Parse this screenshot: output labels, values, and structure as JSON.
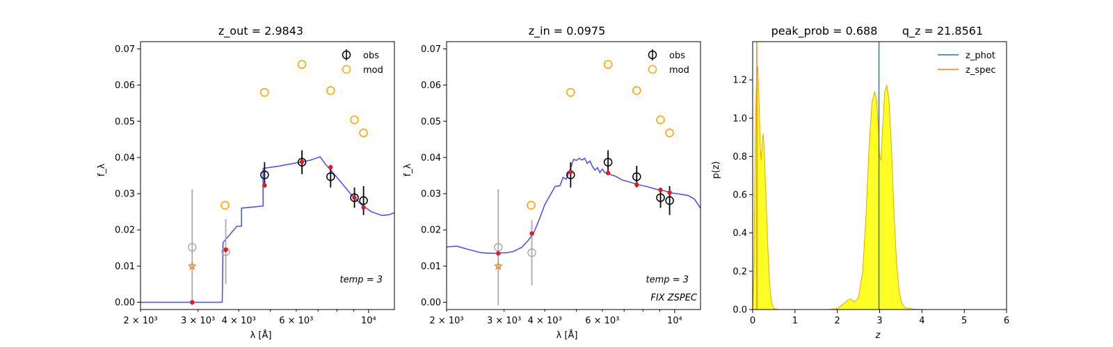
{
  "chart_data": [
    {
      "type": "scatter",
      "title": "z_out = 2.9843",
      "xlabel": "λ [Å]",
      "ylabel": "f_λ",
      "xscale": "log",
      "xlim": [
        2000,
        12000
      ],
      "ylim": [
        -0.002,
        0.072
      ],
      "xtick_labels": [
        {
          "value": 2000,
          "label": "2 × 10³"
        },
        {
          "value": 3000,
          "label": "3 × 10³"
        },
        {
          "value": 4000,
          "label": "4 × 10³"
        },
        {
          "value": 6000,
          "label": "6 × 10³"
        },
        {
          "value": 10000,
          "label": "10⁴"
        }
      ],
      "yticks": [
        0.0,
        0.01,
        0.02,
        0.03,
        0.04,
        0.05,
        0.06,
        0.07
      ],
      "ytick_labels": [
        "0.00",
        "0.01",
        "0.02",
        "0.03",
        "0.04",
        "0.05",
        "0.06",
        "0.07"
      ],
      "annotation": "temp = 3",
      "legend_position": "top-right",
      "legend": [
        {
          "label": "obs"
        },
        {
          "label": "mod"
        }
      ],
      "series": [
        {
          "name": "obs",
          "points": [
            {
              "x": 4800,
              "y": 0.0352,
              "err": 0.0035
            },
            {
              "x": 6250,
              "y": 0.0387,
              "err": 0.0033
            },
            {
              "x": 7650,
              "y": 0.0347,
              "err": 0.003
            },
            {
              "x": 9050,
              "y": 0.0289,
              "err": 0.0028
            },
            {
              "x": 9650,
              "y": 0.0281,
              "err": 0.004
            }
          ]
        },
        {
          "name": "obs_gray",
          "points": [
            {
              "x": 2880,
              "y": 0.0152,
              "err": 0.016
            },
            {
              "x": 3650,
              "y": 0.014,
              "err": 0.009
            }
          ]
        },
        {
          "name": "mod",
          "points": [
            {
              "x": 3630,
              "y": 0.0268
            },
            {
              "x": 4800,
              "y": 0.058
            },
            {
              "x": 6250,
              "y": 0.0657
            },
            {
              "x": 7650,
              "y": 0.0585
            },
            {
              "x": 9050,
              "y": 0.0504
            },
            {
              "x": 9650,
              "y": 0.0468
            }
          ]
        },
        {
          "name": "star",
          "points": [
            {
              "x": 2880,
              "y": 0.01
            }
          ]
        },
        {
          "name": "red",
          "points": [
            {
              "x": 2880,
              "y": 0.0
            },
            {
              "x": 3650,
              "y": 0.0145
            },
            {
              "x": 4800,
              "y": 0.0323
            },
            {
              "x": 6250,
              "y": 0.0388
            },
            {
              "x": 7650,
              "y": 0.0373
            },
            {
              "x": 9050,
              "y": 0.0289
            },
            {
              "x": 9650,
              "y": 0.0262
            }
          ]
        },
        {
          "name": "sed",
          "points": [
            [
              2000,
              0.0
            ],
            [
              3560,
              0.0
            ],
            [
              3580,
              0.0165
            ],
            [
              3950,
              0.021
            ],
            [
              4080,
              0.021
            ],
            [
              4080,
              0.026
            ],
            [
              4750,
              0.0266
            ],
            [
              4750,
              0.037
            ],
            [
              5300,
              0.0376
            ],
            [
              6000,
              0.0385
            ],
            [
              6600,
              0.0392
            ],
            [
              7100,
              0.0402
            ],
            [
              7400,
              0.038
            ],
            [
              8000,
              0.0345
            ],
            [
              8800,
              0.03
            ],
            [
              9500,
              0.027
            ],
            [
              10200,
              0.025
            ],
            [
              11000,
              0.024
            ],
            [
              11600,
              0.0242
            ],
            [
              12000,
              0.0248
            ]
          ]
        }
      ]
    },
    {
      "type": "scatter",
      "title": "z_in = 0.0975",
      "xlabel": "λ [Å]",
      "ylabel": "f_λ",
      "xscale": "log",
      "xlim": [
        2000,
        12000
      ],
      "ylim": [
        -0.002,
        0.072
      ],
      "xtick_labels": [
        {
          "value": 2000,
          "label": "2 × 10³"
        },
        {
          "value": 3000,
          "label": "3 × 10³"
        },
        {
          "value": 4000,
          "label": "4 × 10³"
        },
        {
          "value": 6000,
          "label": "6 × 10³"
        },
        {
          "value": 10000,
          "label": "10⁴"
        }
      ],
      "yticks": [
        0.0,
        0.01,
        0.02,
        0.03,
        0.04,
        0.05,
        0.06,
        0.07
      ],
      "ytick_labels": [
        "0.00",
        "0.01",
        "0.02",
        "0.03",
        "0.04",
        "0.05",
        "0.06",
        "0.07"
      ],
      "annotation": "temp = 3",
      "annotation2": "FIX ZSPEC",
      "legend_position": "top-right",
      "legend": [
        {
          "label": "obs"
        },
        {
          "label": "mod"
        }
      ],
      "series": [
        {
          "name": "obs",
          "points": [
            {
              "x": 4800,
              "y": 0.0352,
              "err": 0.0035
            },
            {
              "x": 6250,
              "y": 0.0387,
              "err": 0.0033
            },
            {
              "x": 7650,
              "y": 0.0347,
              "err": 0.003
            },
            {
              "x": 9050,
              "y": 0.0289,
              "err": 0.0028
            },
            {
              "x": 9650,
              "y": 0.0281,
              "err": 0.004
            }
          ]
        },
        {
          "name": "obs_gray",
          "points": [
            {
              "x": 2880,
              "y": 0.0152,
              "err": 0.016
            },
            {
              "x": 3650,
              "y": 0.0137,
              "err": 0.009
            }
          ]
        },
        {
          "name": "mod",
          "points": [
            {
              "x": 3630,
              "y": 0.0268
            },
            {
              "x": 4800,
              "y": 0.058
            },
            {
              "x": 6250,
              "y": 0.0657
            },
            {
              "x": 7650,
              "y": 0.0585
            },
            {
              "x": 9050,
              "y": 0.0504
            },
            {
              "x": 9650,
              "y": 0.0468
            }
          ]
        },
        {
          "name": "star",
          "points": [
            {
              "x": 2880,
              "y": 0.01
            }
          ]
        },
        {
          "name": "red",
          "points": [
            {
              "x": 2880,
              "y": 0.0135
            },
            {
              "x": 3650,
              "y": 0.019
            },
            {
              "x": 4800,
              "y": 0.036
            },
            {
              "x": 6250,
              "y": 0.0357
            },
            {
              "x": 7650,
              "y": 0.0325
            },
            {
              "x": 9050,
              "y": 0.031
            },
            {
              "x": 9650,
              "y": 0.0303
            }
          ]
        },
        {
          "name": "sed",
          "points": [
            [
              2000,
              0.0153
            ],
            [
              2150,
              0.0155
            ],
            [
              2350,
              0.0145
            ],
            [
              2550,
              0.0137
            ],
            [
              2750,
              0.0135
            ],
            [
              2900,
              0.0136
            ],
            [
              3050,
              0.0137
            ],
            [
              3200,
              0.014
            ],
            [
              3400,
              0.0152
            ],
            [
              3550,
              0.017
            ],
            [
              3700,
              0.0192
            ],
            [
              3850,
              0.023
            ],
            [
              4000,
              0.027
            ],
            [
              4150,
              0.0295
            ],
            [
              4300,
              0.032
            ],
            [
              4450,
              0.0322
            ],
            [
              4550,
              0.0345
            ],
            [
              4650,
              0.034
            ],
            [
              4800,
              0.037
            ],
            [
              4900,
              0.0395
            ],
            [
              5000,
              0.0392
            ],
            [
              5100,
              0.0398
            ],
            [
              5200,
              0.0393
            ],
            [
              5300,
              0.0398
            ],
            [
              5400,
              0.0384
            ],
            [
              5500,
              0.039
            ],
            [
              5600,
              0.0375
            ],
            [
              5700,
              0.0365
            ],
            [
              5800,
              0.0372
            ],
            [
              5900,
              0.0358
            ],
            [
              6000,
              0.0368
            ],
            [
              6100,
              0.0359
            ],
            [
              6250,
              0.0356
            ],
            [
              6400,
              0.0352
            ],
            [
              6600,
              0.0348
            ],
            [
              6900,
              0.0338
            ],
            [
              7300,
              0.0332
            ],
            [
              7700,
              0.0325
            ],
            [
              8200,
              0.032
            ],
            [
              8800,
              0.0312
            ],
            [
              9300,
              0.0308
            ],
            [
              9800,
              0.0302
            ],
            [
              10500,
              0.0298
            ],
            [
              11000,
              0.0295
            ],
            [
              11500,
              0.0285
            ],
            [
              12000,
              0.026
            ]
          ]
        }
      ]
    },
    {
      "type": "area",
      "title": "peak_prob = 0.688",
      "title2": "q_z = 21.8561",
      "xlabel": "z",
      "ylabel": "p(z)",
      "xlim": [
        0,
        6
      ],
      "ylim": [
        0,
        1.4
      ],
      "xticks": [
        0,
        1,
        2,
        3,
        4,
        5,
        6
      ],
      "xtick_labels": [
        "0",
        "1",
        "2",
        "3",
        "4",
        "5",
        "6"
      ],
      "yticks": [
        0.0,
        0.2,
        0.4,
        0.6,
        0.8,
        1.0,
        1.2
      ],
      "ytick_labels": [
        "0.0",
        "0.2",
        "0.4",
        "0.6",
        "0.8",
        "1.0",
        "1.2"
      ],
      "legend_position": "top-right",
      "legend": [
        {
          "label": "z_phot",
          "color": "#1f77b4"
        },
        {
          "label": "z_spec",
          "color": "#ff7f0e"
        }
      ],
      "z_phot": 2.9843,
      "z_spec": 0.0975,
      "pdf": [
        [
          0.0,
          0.0
        ],
        [
          0.03,
          0.2
        ],
        [
          0.06,
          0.9
        ],
        [
          0.09,
          1.2
        ],
        [
          0.12,
          1.27
        ],
        [
          0.15,
          1.1
        ],
        [
          0.18,
          0.85
        ],
        [
          0.2,
          0.78
        ],
        [
          0.23,
          0.88
        ],
        [
          0.25,
          0.92
        ],
        [
          0.28,
          0.8
        ],
        [
          0.32,
          0.55
        ],
        [
          0.36,
          0.32
        ],
        [
          0.4,
          0.14
        ],
        [
          0.44,
          0.04
        ],
        [
          0.5,
          0.005
        ],
        [
          0.6,
          0.0
        ],
        [
          1.0,
          0.0
        ],
        [
          1.8,
          0.0
        ],
        [
          2.0,
          0.005
        ],
        [
          2.15,
          0.03
        ],
        [
          2.25,
          0.05
        ],
        [
          2.32,
          0.055
        ],
        [
          2.4,
          0.04
        ],
        [
          2.5,
          0.06
        ],
        [
          2.6,
          0.2
        ],
        [
          2.68,
          0.5
        ],
        [
          2.75,
          0.85
        ],
        [
          2.82,
          1.08
        ],
        [
          2.88,
          1.14
        ],
        [
          2.93,
          1.1
        ],
        [
          2.97,
          0.95
        ],
        [
          3.0,
          0.8
        ],
        [
          3.03,
          0.78
        ],
        [
          3.07,
          0.95
        ],
        [
          3.12,
          1.14
        ],
        [
          3.17,
          1.17
        ],
        [
          3.22,
          1.1
        ],
        [
          3.28,
          0.85
        ],
        [
          3.34,
          0.5
        ],
        [
          3.4,
          0.25
        ],
        [
          3.46,
          0.1
        ],
        [
          3.52,
          0.035
        ],
        [
          3.6,
          0.01
        ],
        [
          3.8,
          0.002
        ],
        [
          4.0,
          0.0
        ],
        [
          5.0,
          0.0
        ]
      ]
    }
  ]
}
